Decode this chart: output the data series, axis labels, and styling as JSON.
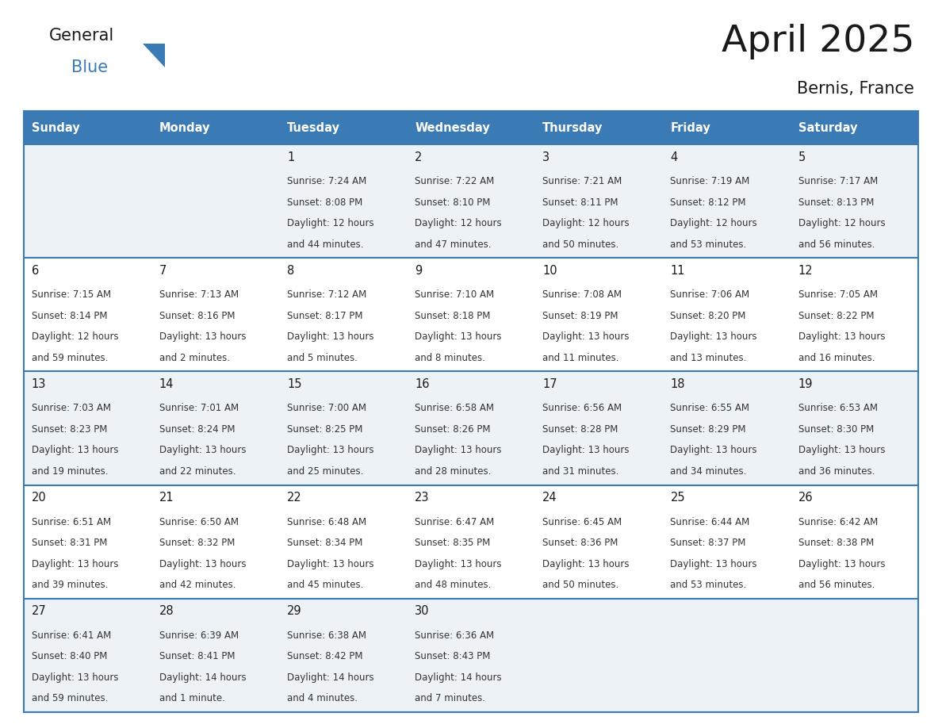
{
  "title": "April 2025",
  "subtitle": "Bernis, France",
  "days_of_week": [
    "Sunday",
    "Monday",
    "Tuesday",
    "Wednesday",
    "Thursday",
    "Friday",
    "Saturday"
  ],
  "header_bg": "#3a7ab5",
  "header_text": "#ffffff",
  "row_bg_odd": "#edf2f7",
  "row_bg_even": "#ffffff",
  "border_color": "#3a7ab5",
  "text_color": "#333333",
  "day_num_color": "#1a1a1a",
  "logo_color_general": "#1a1a1a",
  "logo_color_blue": "#3a7ab5",
  "calendar_data": [
    [
      {
        "day": "",
        "sunrise": "",
        "sunset": "",
        "daylight_h": "",
        "daylight_m": ""
      },
      {
        "day": "",
        "sunrise": "",
        "sunset": "",
        "daylight_h": "",
        "daylight_m": ""
      },
      {
        "day": "1",
        "sunrise": "7:24 AM",
        "sunset": "8:08 PM",
        "daylight_h": "12 hours",
        "daylight_m": "and 44 minutes."
      },
      {
        "day": "2",
        "sunrise": "7:22 AM",
        "sunset": "8:10 PM",
        "daylight_h": "12 hours",
        "daylight_m": "and 47 minutes."
      },
      {
        "day": "3",
        "sunrise": "7:21 AM",
        "sunset": "8:11 PM",
        "daylight_h": "12 hours",
        "daylight_m": "and 50 minutes."
      },
      {
        "day": "4",
        "sunrise": "7:19 AM",
        "sunset": "8:12 PM",
        "daylight_h": "12 hours",
        "daylight_m": "and 53 minutes."
      },
      {
        "day": "5",
        "sunrise": "7:17 AM",
        "sunset": "8:13 PM",
        "daylight_h": "12 hours",
        "daylight_m": "and 56 minutes."
      }
    ],
    [
      {
        "day": "6",
        "sunrise": "7:15 AM",
        "sunset": "8:14 PM",
        "daylight_h": "12 hours",
        "daylight_m": "and 59 minutes."
      },
      {
        "day": "7",
        "sunrise": "7:13 AM",
        "sunset": "8:16 PM",
        "daylight_h": "13 hours",
        "daylight_m": "and 2 minutes."
      },
      {
        "day": "8",
        "sunrise": "7:12 AM",
        "sunset": "8:17 PM",
        "daylight_h": "13 hours",
        "daylight_m": "and 5 minutes."
      },
      {
        "day": "9",
        "sunrise": "7:10 AM",
        "sunset": "8:18 PM",
        "daylight_h": "13 hours",
        "daylight_m": "and 8 minutes."
      },
      {
        "day": "10",
        "sunrise": "7:08 AM",
        "sunset": "8:19 PM",
        "daylight_h": "13 hours",
        "daylight_m": "and 11 minutes."
      },
      {
        "day": "11",
        "sunrise": "7:06 AM",
        "sunset": "8:20 PM",
        "daylight_h": "13 hours",
        "daylight_m": "and 13 minutes."
      },
      {
        "day": "12",
        "sunrise": "7:05 AM",
        "sunset": "8:22 PM",
        "daylight_h": "13 hours",
        "daylight_m": "and 16 minutes."
      }
    ],
    [
      {
        "day": "13",
        "sunrise": "7:03 AM",
        "sunset": "8:23 PM",
        "daylight_h": "13 hours",
        "daylight_m": "and 19 minutes."
      },
      {
        "day": "14",
        "sunrise": "7:01 AM",
        "sunset": "8:24 PM",
        "daylight_h": "13 hours",
        "daylight_m": "and 22 minutes."
      },
      {
        "day": "15",
        "sunrise": "7:00 AM",
        "sunset": "8:25 PM",
        "daylight_h": "13 hours",
        "daylight_m": "and 25 minutes."
      },
      {
        "day": "16",
        "sunrise": "6:58 AM",
        "sunset": "8:26 PM",
        "daylight_h": "13 hours",
        "daylight_m": "and 28 minutes."
      },
      {
        "day": "17",
        "sunrise": "6:56 AM",
        "sunset": "8:28 PM",
        "daylight_h": "13 hours",
        "daylight_m": "and 31 minutes."
      },
      {
        "day": "18",
        "sunrise": "6:55 AM",
        "sunset": "8:29 PM",
        "daylight_h": "13 hours",
        "daylight_m": "and 34 minutes."
      },
      {
        "day": "19",
        "sunrise": "6:53 AM",
        "sunset": "8:30 PM",
        "daylight_h": "13 hours",
        "daylight_m": "and 36 minutes."
      }
    ],
    [
      {
        "day": "20",
        "sunrise": "6:51 AM",
        "sunset": "8:31 PM",
        "daylight_h": "13 hours",
        "daylight_m": "and 39 minutes."
      },
      {
        "day": "21",
        "sunrise": "6:50 AM",
        "sunset": "8:32 PM",
        "daylight_h": "13 hours",
        "daylight_m": "and 42 minutes."
      },
      {
        "day": "22",
        "sunrise": "6:48 AM",
        "sunset": "8:34 PM",
        "daylight_h": "13 hours",
        "daylight_m": "and 45 minutes."
      },
      {
        "day": "23",
        "sunrise": "6:47 AM",
        "sunset": "8:35 PM",
        "daylight_h": "13 hours",
        "daylight_m": "and 48 minutes."
      },
      {
        "day": "24",
        "sunrise": "6:45 AM",
        "sunset": "8:36 PM",
        "daylight_h": "13 hours",
        "daylight_m": "and 50 minutes."
      },
      {
        "day": "25",
        "sunrise": "6:44 AM",
        "sunset": "8:37 PM",
        "daylight_h": "13 hours",
        "daylight_m": "and 53 minutes."
      },
      {
        "day": "26",
        "sunrise": "6:42 AM",
        "sunset": "8:38 PM",
        "daylight_h": "13 hours",
        "daylight_m": "and 56 minutes."
      }
    ],
    [
      {
        "day": "27",
        "sunrise": "6:41 AM",
        "sunset": "8:40 PM",
        "daylight_h": "13 hours",
        "daylight_m": "and 59 minutes."
      },
      {
        "day": "28",
        "sunrise": "6:39 AM",
        "sunset": "8:41 PM",
        "daylight_h": "14 hours",
        "daylight_m": "and 1 minute."
      },
      {
        "day": "29",
        "sunrise": "6:38 AM",
        "sunset": "8:42 PM",
        "daylight_h": "14 hours",
        "daylight_m": "and 4 minutes."
      },
      {
        "day": "30",
        "sunrise": "6:36 AM",
        "sunset": "8:43 PM",
        "daylight_h": "14 hours",
        "daylight_m": "and 7 minutes."
      },
      {
        "day": "",
        "sunrise": "",
        "sunset": "",
        "daylight_h": "",
        "daylight_m": ""
      },
      {
        "day": "",
        "sunrise": "",
        "sunset": "",
        "daylight_h": "",
        "daylight_m": ""
      },
      {
        "day": "",
        "sunrise": "",
        "sunset": "",
        "daylight_h": "",
        "daylight_m": ""
      }
    ]
  ]
}
